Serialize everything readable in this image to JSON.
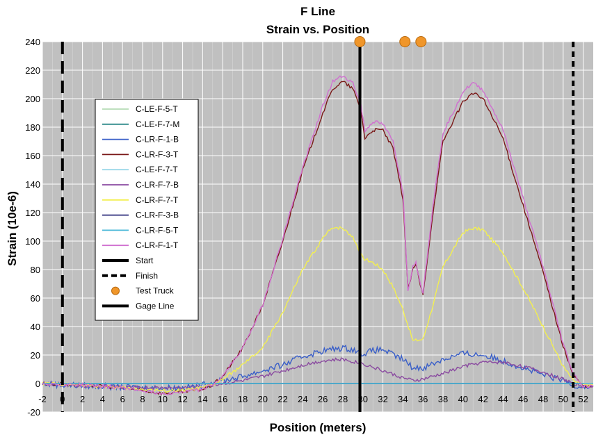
{
  "chart_data": {
    "type": "line",
    "title": "F Line",
    "subtitle": "Strain vs. Position",
    "xlabel": "Position (meters)",
    "ylabel": "Strain (10e-6)",
    "xlim": [
      -2,
      53
    ],
    "ylim": [
      -20,
      240
    ],
    "xticks": [
      -2,
      0,
      2,
      4,
      6,
      8,
      10,
      12,
      14,
      16,
      18,
      20,
      22,
      24,
      26,
      28,
      30,
      32,
      34,
      36,
      38,
      40,
      42,
      44,
      46,
      48,
      50,
      52
    ],
    "yticks": [
      -20,
      0,
      20,
      40,
      60,
      80,
      100,
      120,
      140,
      160,
      180,
      200,
      220,
      240
    ],
    "grid": true,
    "plot_background": "#c0c0c0",
    "legend_position": "left",
    "series": [
      {
        "name": "C-LE-F-5-T",
        "color": "#b5dcb5",
        "x": [
          -2,
          52
        ],
        "y": [
          0,
          0
        ]
      },
      {
        "name": "C-LE-F-7-M",
        "color": "#2f8a8a",
        "x": [
          -2,
          52
        ],
        "y": [
          0,
          0
        ]
      },
      {
        "name": "C-LR-F-1-B",
        "color": "#3a5fc8",
        "x": [
          -2,
          0,
          4,
          8,
          12,
          14,
          16,
          18,
          20,
          22,
          24,
          26,
          28,
          29,
          30,
          31,
          32,
          33,
          34,
          35,
          36,
          38,
          40,
          42,
          44,
          46,
          48,
          50,
          51,
          52,
          53
        ],
        "y": [
          0,
          -1,
          -2,
          -3,
          -3,
          -1,
          2,
          5,
          9,
          13,
          19,
          23,
          25,
          24,
          21,
          23,
          24,
          20,
          17,
          11,
          11,
          17,
          21,
          20,
          16,
          11,
          6,
          2,
          -1,
          -2,
          -2
        ]
      },
      {
        "name": "C-LR-F-3-T",
        "color": "#7a1818",
        "x": [
          -2,
          2,
          6,
          10,
          12,
          14,
          15,
          16,
          18,
          20,
          22,
          24,
          26,
          27,
          28,
          29,
          29.8,
          30.2,
          31,
          32,
          33,
          34,
          34.5,
          35,
          35.3,
          35.6,
          36,
          37,
          38,
          40,
          41,
          42,
          44,
          46,
          48,
          50,
          51,
          52,
          53
        ],
        "y": [
          0,
          -1,
          -3,
          -7,
          -6,
          -4,
          -1,
          5,
          25,
          55,
          100,
          150,
          190,
          207,
          212,
          207,
          192,
          172,
          178,
          178,
          165,
          130,
          66,
          80,
          84,
          73,
          62,
          120,
          170,
          198,
          204,
          200,
          172,
          125,
          78,
          26,
          6,
          -2,
          -2
        ]
      },
      {
        "name": "C-LE-F-7-T",
        "color": "#9bd8e8",
        "x": [
          -2,
          52
        ],
        "y": [
          0,
          0
        ]
      },
      {
        "name": "C-LR-F-7-B",
        "color": "#8a4aa0",
        "x": [
          -2,
          0,
          4,
          8,
          12,
          14,
          16,
          18,
          20,
          22,
          24,
          26,
          28,
          30,
          32,
          34,
          35,
          36,
          38,
          40,
          42,
          44,
          46,
          48,
          50,
          51,
          52,
          53
        ],
        "y": [
          0,
          -1,
          -2,
          -3,
          -3,
          -2,
          0,
          2,
          5,
          9,
          13,
          16,
          17,
          14,
          9,
          4,
          2,
          3,
          7,
          12,
          15,
          15,
          12,
          8,
          3,
          0,
          -2,
          -2
        ]
      },
      {
        "name": "C-LR-F-7-T",
        "color": "#f2ef50",
        "x": [
          -2,
          2,
          6,
          10,
          12,
          14,
          15,
          16,
          18,
          20,
          22,
          24,
          26,
          27,
          28,
          29,
          30,
          31,
          32,
          33,
          34,
          35,
          36,
          37,
          38,
          40,
          41,
          42,
          44,
          46,
          48,
          50,
          51,
          52,
          53
        ],
        "y": [
          0,
          -1,
          -3,
          -5,
          -5,
          -3,
          -1,
          3,
          13,
          25,
          50,
          80,
          102,
          110,
          109,
          103,
          88,
          85,
          80,
          68,
          52,
          30,
          31,
          55,
          82,
          106,
          109,
          108,
          92,
          67,
          40,
          12,
          2,
          -1,
          -1
        ]
      },
      {
        "name": "C-LR-F-3-B",
        "color": "#2b2b7a",
        "x": [
          -2,
          52
        ],
        "y": [
          0,
          0
        ]
      },
      {
        "name": "C-LR-F-5-T",
        "color": "#4ab8d8",
        "x": [
          -2,
          53
        ],
        "y": [
          0,
          0
        ]
      },
      {
        "name": "C-LR-F-1-T",
        "color": "#d070d0",
        "x": [
          -2,
          2,
          6,
          10,
          12,
          14,
          15,
          16,
          18,
          20,
          22,
          24,
          26,
          27,
          28,
          29,
          29.8,
          30.2,
          31,
          32,
          33,
          34,
          34.5,
          35,
          35.3,
          35.6,
          36,
          37,
          38,
          40,
          41,
          42,
          44,
          46,
          48,
          50,
          51,
          52,
          53
        ],
        "y": [
          0,
          -1,
          -3,
          -7,
          -6,
          -4,
          -1,
          5,
          25,
          55,
          102,
          152,
          195,
          212,
          216,
          211,
          196,
          177,
          184,
          182,
          170,
          135,
          66,
          82,
          86,
          74,
          64,
          125,
          176,
          205,
          211,
          206,
          178,
          130,
          82,
          28,
          7,
          -2,
          -2
        ]
      }
    ],
    "legend": [
      {
        "label": "Start",
        "style": "solid-thick",
        "color": "#000000"
      },
      {
        "label": "Finish",
        "style": "dashed-thick",
        "color": "#000000"
      },
      {
        "label": "Test Truck",
        "style": "marker",
        "color": "#f0962a"
      },
      {
        "label": "Gage Line",
        "style": "solid-thick",
        "color": "#000000"
      }
    ],
    "start_x": 0,
    "finish_x": 51,
    "gage_line_x": 29.7,
    "test_truck_x": [
      29.7,
      34.2,
      35.8
    ],
    "test_truck_y": 240
  }
}
